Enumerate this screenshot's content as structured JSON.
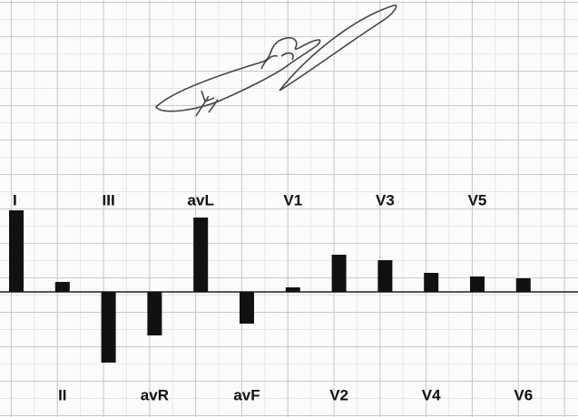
{
  "chart_data": {
    "type": "bar",
    "categories": [
      "I",
      "II",
      "III",
      "avR",
      "avL",
      "avF",
      "V1",
      "V2",
      "V3",
      "V4",
      "V5",
      "V6"
    ],
    "values": [
      4.5,
      0.55,
      -3.9,
      -2.4,
      4.1,
      -1.75,
      0.25,
      2.05,
      1.75,
      1.05,
      0.85,
      0.75
    ],
    "color": "#111111",
    "ylim": [
      -6.9,
      16.1
    ]
  }
}
